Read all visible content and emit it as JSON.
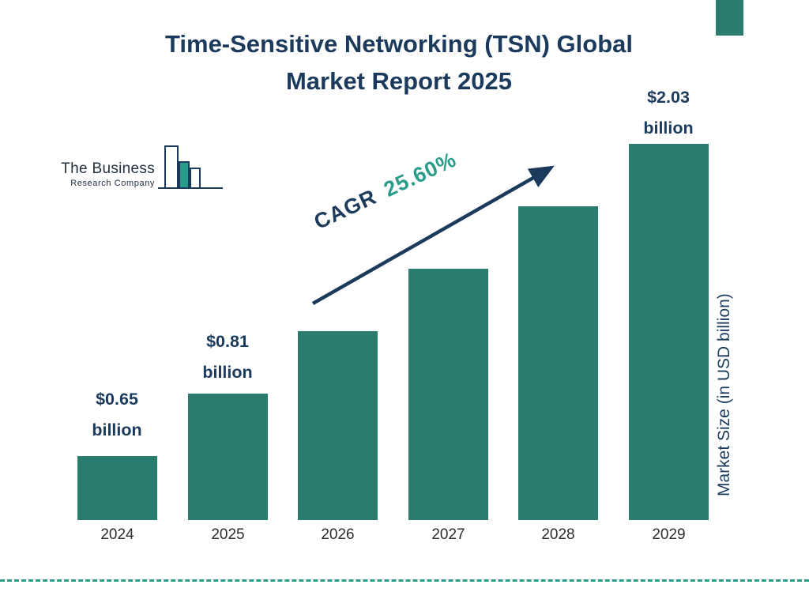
{
  "header": {
    "title_line1": "Time-Sensitive Networking (TSN) Global",
    "title_line2": "Market Report 2025"
  },
  "logo": {
    "name_line1": "The Business",
    "name_line2": "Research Company"
  },
  "chart_data": {
    "type": "bar",
    "title": "Time-Sensitive Networking (TSN) Global Market Report 2025",
    "categories": [
      "2024",
      "2025",
      "2026",
      "2027",
      "2028",
      "2029"
    ],
    "values": [
      0.65,
      0.81,
      1.02,
      1.28,
      1.61,
      2.03
    ],
    "labeled_values": [
      {
        "year": "2024",
        "value": "$0.65",
        "unit": "billion"
      },
      {
        "year": "2025",
        "value": "$0.81",
        "unit": "billion"
      },
      {
        "year": "2029",
        "value": "$2.03",
        "unit": "billion"
      }
    ],
    "xlabel": "",
    "ylabel": "Market Size (in USD billion)",
    "ylim": [
      0,
      2.03
    ],
    "grid": false,
    "legend": "none",
    "cagr": {
      "label": "CAGR",
      "value": "25.60%"
    },
    "colors": {
      "bar": "#2a7d6e",
      "navy": "#1b3a5c",
      "teal": "#2a9d8a"
    }
  }
}
